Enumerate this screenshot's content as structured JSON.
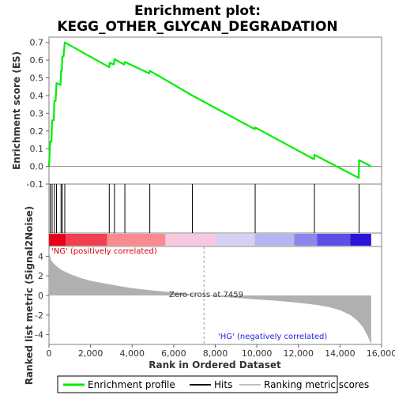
{
  "chart_data": {
    "type": "line",
    "title_line1": "Enrichment plot:",
    "title_line2": "KEGG_OTHER_GLYCAN_DEGRADATION",
    "es_panel": {
      "ylabel": "Enrichment score (ES)",
      "ylim": [
        -0.1,
        0.73
      ],
      "yticks": [
        "-0.1",
        "0.0",
        "0.1",
        "0.2",
        "0.3",
        "0.4",
        "0.5",
        "0.6",
        "0.7"
      ],
      "ytick_values": [
        -0.1,
        0.0,
        0.1,
        0.2,
        0.3,
        0.4,
        0.5,
        0.6,
        0.7
      ],
      "series_name": "Enrichment profile",
      "color": "#00ee00",
      "points": [
        [
          0,
          0.0
        ],
        [
          60,
          0.14
        ],
        [
          120,
          0.14
        ],
        [
          150,
          0.26
        ],
        [
          230,
          0.26
        ],
        [
          260,
          0.37
        ],
        [
          320,
          0.37
        ],
        [
          360,
          0.47
        ],
        [
          560,
          0.46
        ],
        [
          580,
          0.54
        ],
        [
          620,
          0.54
        ],
        [
          640,
          0.62
        ],
        [
          700,
          0.62
        ],
        [
          760,
          0.7
        ],
        [
          2900,
          0.56
        ],
        [
          2920,
          0.585
        ],
        [
          3120,
          0.575
        ],
        [
          3150,
          0.605
        ],
        [
          3620,
          0.575
        ],
        [
          3650,
          0.59
        ],
        [
          4820,
          0.525
        ],
        [
          4850,
          0.54
        ],
        [
          6900,
          0.4
        ],
        [
          9900,
          0.21
        ],
        [
          9920,
          0.22
        ],
        [
          12750,
          0.04
        ],
        [
          12770,
          0.065
        ],
        [
          14900,
          -0.065
        ],
        [
          14920,
          0.035
        ],
        [
          15500,
          0.0
        ]
      ]
    },
    "hits": {
      "name": "Hits",
      "positions": [
        60,
        150,
        260,
        360,
        580,
        640,
        760,
        2900,
        3150,
        3650,
        4850,
        6900,
        9920,
        12770,
        14920
      ]
    },
    "ranked_panel": {
      "ylabel": "Ranked list metric (Signal2Noise)",
      "ylim": [
        -5.0,
        5.0
      ],
      "yticks": [
        "-4",
        "-2",
        "0",
        "2",
        "4"
      ],
      "ytick_values": [
        -4,
        -2,
        0,
        2,
        4
      ],
      "series_name": "Ranking metric scores",
      "color": "#b0b0b0",
      "points": [
        [
          0,
          4.6
        ],
        [
          100,
          3.6
        ],
        [
          300,
          3.1
        ],
        [
          600,
          2.6
        ],
        [
          1000,
          2.2
        ],
        [
          1500,
          1.8
        ],
        [
          2000,
          1.5
        ],
        [
          3000,
          1.1
        ],
        [
          4000,
          0.75
        ],
        [
          5000,
          0.5
        ],
        [
          6000,
          0.3
        ],
        [
          7000,
          0.1
        ],
        [
          7459,
          0.0
        ],
        [
          8000,
          -0.1
        ],
        [
          9000,
          -0.25
        ],
        [
          10000,
          -0.4
        ],
        [
          11000,
          -0.55
        ],
        [
          12000,
          -0.75
        ],
        [
          13000,
          -1.0
        ],
        [
          13500,
          -1.2
        ],
        [
          14000,
          -1.5
        ],
        [
          14500,
          -2.0
        ],
        [
          14800,
          -2.5
        ],
        [
          15100,
          -3.2
        ],
        [
          15300,
          -4.0
        ],
        [
          15500,
          -5.0
        ]
      ],
      "zero_cross_label": "Zero cross at 7459",
      "zero_cross": 7459,
      "pos_label": "'NG' (positively correlated)",
      "neg_label": "'HG' (negatively correlated)",
      "pos_color": "#dd0000",
      "neg_color": "#2222dd"
    },
    "xlabel": "Rank in Ordered Dataset",
    "xlim": [
      0,
      16000
    ],
    "xticks": [
      "0",
      "2,000",
      "4,000",
      "6,000",
      "8,000",
      "10,000",
      "12,000",
      "14,000",
      "16,000"
    ],
    "xtick_values": [
      0,
      2000,
      4000,
      6000,
      8000,
      10000,
      12000,
      14000,
      16000
    ],
    "n_genes": 15500,
    "color_bar": {
      "segments": [
        {
          "end": 800,
          "color": "#e8001a"
        },
        {
          "end": 2800,
          "color": "#f04050"
        },
        {
          "end": 5600,
          "color": "#f88a90"
        },
        {
          "end": 8000,
          "color": "#f8c8e0"
        },
        {
          "end": 9900,
          "color": "#d8d0f4"
        },
        {
          "end": 11800,
          "color": "#b8b4f0"
        },
        {
          "end": 12900,
          "color": "#8a86ec"
        },
        {
          "end": 14500,
          "color": "#5a50e6"
        },
        {
          "end": 15500,
          "color": "#2a14d8"
        }
      ]
    },
    "legend": {
      "items": [
        {
          "label": "Enrichment profile",
          "color": "#00ee00",
          "kind": "line"
        },
        {
          "label": "Hits",
          "color": "#000000",
          "kind": "line"
        },
        {
          "label": "Ranking metric scores",
          "color": "#c0c0c0",
          "kind": "line"
        }
      ]
    }
  }
}
